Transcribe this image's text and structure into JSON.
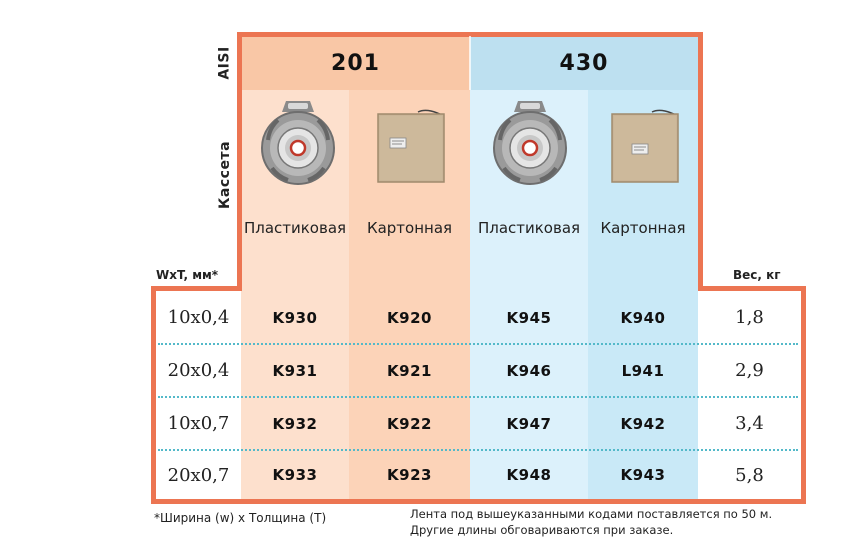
{
  "labels": {
    "aisi": "AISI",
    "cassette": "Кассета",
    "size_header": "WxT, мм*",
    "weight_header": "Вес, кг"
  },
  "grades": [
    {
      "name": "201",
      "color": "#fcd3b8",
      "header_color": "#f9c7a6"
    },
    {
      "name": "430",
      "color": "#cdebf7",
      "header_color": "#bde0f0"
    }
  ],
  "cassette_types": [
    {
      "name": "Пластиковая",
      "icon": "plastic-cassette-icon"
    },
    {
      "name": "Картонная",
      "icon": "cardboard-box-icon"
    },
    {
      "name": "Пластиковая",
      "icon": "plastic-cassette-icon"
    },
    {
      "name": "Картонная",
      "icon": "cardboard-box-icon"
    }
  ],
  "rows": [
    {
      "size": "10x0,4",
      "codes": [
        "K930",
        "K920",
        "K945",
        "K940"
      ],
      "weight": "1,8"
    },
    {
      "size": "20x0,4",
      "codes": [
        "K931",
        "K921",
        "K946",
        "L941"
      ],
      "weight": "2,9"
    },
    {
      "size": "10x0,7",
      "codes": [
        "K932",
        "K922",
        "K947",
        "K942"
      ],
      "weight": "3,4"
    },
    {
      "size": "20x0,7",
      "codes": [
        "K933",
        "K923",
        "K948",
        "K943"
      ],
      "weight": "5,8"
    }
  ],
  "notes": {
    "footnote": "*Ширина (w) x Толщина (T)",
    "length_line1": "Лента под вышеуказанными кодами поставляется по 50 м.",
    "length_line2": "Другие длины обговариваются при заказе."
  },
  "colors": {
    "border": "#ec7552",
    "divider": "#53b9c9"
  }
}
